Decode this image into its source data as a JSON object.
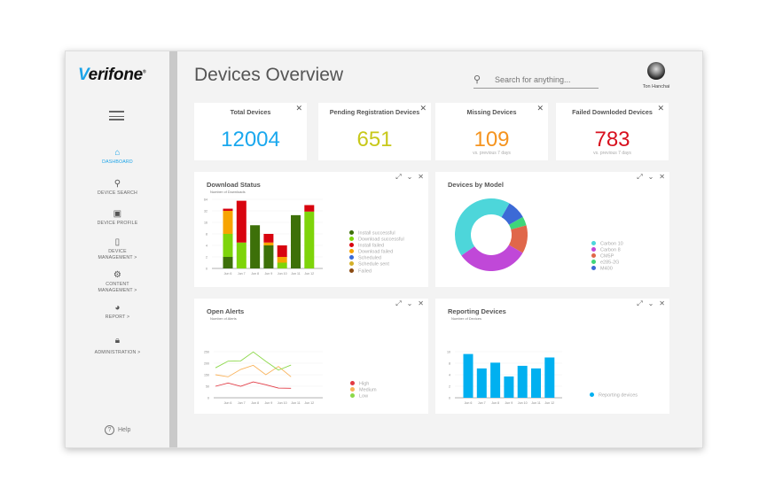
{
  "brand": {
    "logo": "Verifone"
  },
  "sidebar": {
    "items": [
      {
        "label": "DASHBOARD",
        "icon": "home-icon",
        "active": true
      },
      {
        "label": "DEVICE SEARCH",
        "icon": "search-icon"
      },
      {
        "label": "DEVICE PROFILE",
        "icon": "id-card-icon"
      },
      {
        "label": "DEVICE MANAGEMENT >",
        "icon": "device-icon"
      },
      {
        "label": "CONTENT MANAGEMENT >",
        "icon": "content-icon"
      },
      {
        "label": "REPORT >",
        "icon": "pie-chart-icon"
      },
      {
        "label": "ADMINISTRATION >",
        "icon": "lock-icon"
      }
    ],
    "help": "Help"
  },
  "header": {
    "title": "Devices Overview",
    "search_placeholder": "Search for anything...",
    "user": "Ton Hanchai"
  },
  "kpis": [
    {
      "label": "Total Devices",
      "value": "12004",
      "color": "#1aa8ee",
      "sub": ""
    },
    {
      "label": "Pending Registration Devices",
      "value": "651",
      "color": "#c8c81a",
      "sub": ""
    },
    {
      "label": "Missing Devices",
      "value": "109",
      "color": "#f5941f",
      "sub": "vs. previous 7 days"
    },
    {
      "label": "Failed Downloded Devices",
      "value": "783",
      "color": "#d8101e",
      "sub": "vs. previous 7 days"
    }
  ],
  "chart_data": [
    {
      "id": "download",
      "type": "bar",
      "stacked": true,
      "title": "Download Status",
      "ylabel": "Number of Downloads",
      "categories": [
        "Jun 6",
        "Jun 7",
        "Jun 8",
        "Jun 9",
        "Jun 10",
        "Jun 11",
        "Jun 12"
      ],
      "yticks": [
        "0",
        "2",
        "4",
        "8",
        "16",
        "32",
        "64"
      ],
      "series": [
        {
          "name": "Install successful",
          "color": "#3d7009",
          "values": [
            2,
            0,
            14,
            4,
            0,
            26,
            0
          ]
        },
        {
          "name": "Download successful",
          "color": "#7ed40a",
          "values": [
            6,
            5,
            0,
            0,
            1,
            0,
            31
          ]
        },
        {
          "name": "Install failed",
          "color": "#d8040f",
          "values": [
            6,
            55,
            0,
            3,
            2,
            0,
            17
          ]
        },
        {
          "name": "Download failed",
          "color": "#f7a400",
          "values": [
            24,
            0,
            0,
            1,
            1,
            0,
            0
          ]
        },
        {
          "name": "Scheduled",
          "color": "#3a6ad9",
          "values": [
            0,
            0,
            0,
            0,
            0,
            0,
            0
          ]
        },
        {
          "name": "Schedule sent",
          "color": "#d4b02a",
          "values": [
            0,
            0,
            0,
            0,
            0,
            0,
            0
          ]
        },
        {
          "name": "Failed",
          "color": "#8a4a12",
          "values": [
            0,
            0,
            0,
            0,
            0,
            0,
            0
          ]
        }
      ],
      "legend": "right",
      "grid": true
    },
    {
      "id": "model",
      "type": "pie",
      "donut": true,
      "title": "Devices by Model",
      "labels": [
        "Carbon 10",
        "Carbon 8",
        "CM5P",
        "e285-2G",
        "M400"
      ],
      "values": [
        43,
        32,
        12.5,
        4,
        8.5
      ],
      "colors": [
        "#4dd6da",
        "#c048d8",
        "#e0674a",
        "#3fd67a",
        "#3c6ad6"
      ],
      "legend": "right"
    },
    {
      "id": "alerts",
      "type": "line",
      "title": "Open Alerts",
      "ylabel": "Number of Alerts",
      "categories": [
        "Jun 6",
        "Jun 7",
        "Jun 8",
        "Jun 9",
        "Jun 10",
        "Jun 11",
        "Jun 12"
      ],
      "yticks": [
        "0",
        "50",
        "150",
        "200",
        "250"
      ],
      "series": [
        {
          "name": "High",
          "color": "#e23a44",
          "values": [
            50,
            78,
            50,
            88,
            63,
            42,
            41
          ]
        },
        {
          "name": "Medium",
          "color": "#f9b25a",
          "values": [
            150,
            132,
            173,
            191,
            150,
            186,
            132
          ]
        },
        {
          "name": "Low",
          "color": "#8cd84a",
          "values": [
            180,
            209,
            210,
            249,
            208,
            170,
            192
          ]
        }
      ],
      "legend": "right",
      "grid": true
    },
    {
      "id": "reporting",
      "type": "bar",
      "title": "Reporting Devices",
      "ylabel": "Number of Devices",
      "categories": [
        "Jun 6",
        "Jun 7",
        "Jun 8",
        "Jun 9",
        "Jun 10",
        "Jun 11",
        "Jun 12"
      ],
      "yticks": [
        "0",
        "2",
        "4",
        "8",
        "10"
      ],
      "series": [
        {
          "name": "Reporting devices",
          "color": "#00b0f0",
          "values": [
            9.6,
            6.2,
            8.1,
            3.7,
            7.1,
            6.2,
            9.0
          ]
        }
      ],
      "legend": "right",
      "grid": true
    }
  ]
}
